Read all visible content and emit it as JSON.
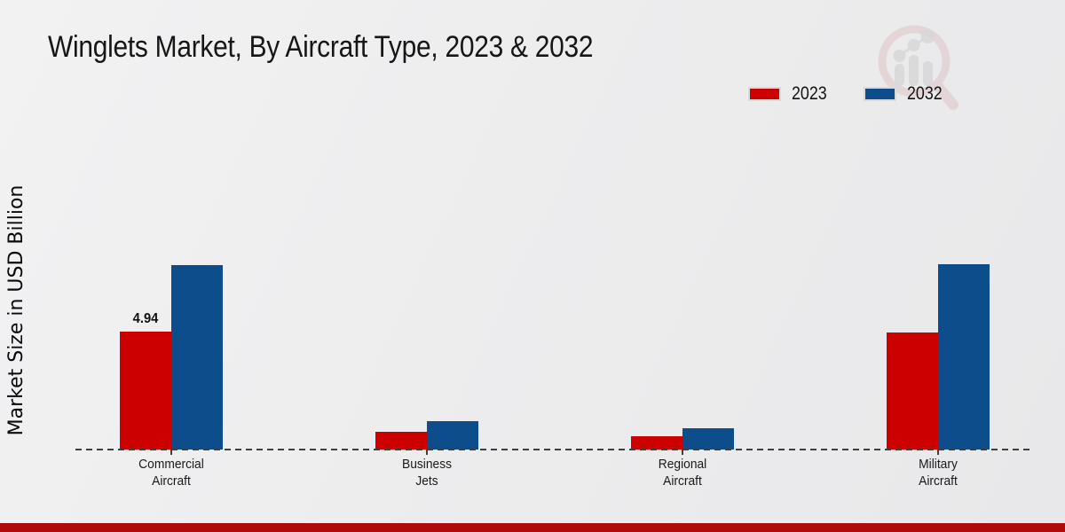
{
  "chart_data": {
    "type": "bar",
    "title": "Winglets Market, By Aircraft Type, 2023 & 2032",
    "ylabel": "Market Size in USD Billion",
    "xlabel": "",
    "ylim": [
      0,
      8.8
    ],
    "grid": false,
    "legend_position": "top-right",
    "baseline_style": "dashed",
    "categories": [
      {
        "id": "commercial-aircraft",
        "label": "Commercial Aircraft",
        "lines": [
          "Commercial",
          "Aircraft"
        ]
      },
      {
        "id": "business-jets",
        "label": "Business Jets",
        "lines": [
          "Business",
          "Jets"
        ]
      },
      {
        "id": "regional-aircraft",
        "label": "Regional Aircraft",
        "lines": [
          "Regional",
          "Aircraft"
        ]
      },
      {
        "id": "military-aircraft",
        "label": "Military Aircraft",
        "lines": [
          "Military",
          "Aircraft"
        ]
      }
    ],
    "series": [
      {
        "name": "2023",
        "color": "#cc0000",
        "values": [
          4.94,
          0.74,
          0.56,
          4.9
        ]
      },
      {
        "name": "2032",
        "color": "#0d4d8b",
        "values": [
          7.73,
          1.19,
          0.89,
          7.76
        ]
      }
    ],
    "annotations": [
      {
        "cat_index": 0,
        "series_index": 0,
        "text": "4.94"
      }
    ]
  },
  "branding": {
    "watermark_icon": "magnifier-analytics-logo-icon",
    "watermark_ring_color": "#cf9f9f",
    "watermark_bar_color": "#c2c2c4"
  },
  "footer": {
    "accent_color": "#b00a0a"
  }
}
